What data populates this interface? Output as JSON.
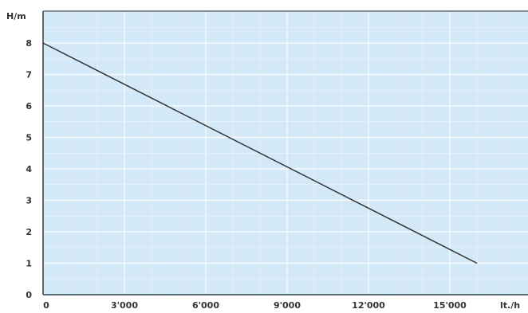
{
  "chart_data": {
    "type": "line",
    "title": "",
    "xlabel": "lt./h",
    "ylabel": "H/m",
    "xlim": [
      0,
      18000
    ],
    "ylim": [
      0,
      9
    ],
    "x_ticks": [
      0,
      3000,
      6000,
      9000,
      12000,
      15000
    ],
    "x_tick_labels": [
      "0",
      "3'000",
      "6'000",
      "9'000",
      "12'000",
      "15'000"
    ],
    "y_ticks": [
      0,
      1,
      2,
      3,
      4,
      5,
      6,
      7,
      8
    ],
    "y_tick_labels": [
      "0",
      "1",
      "2",
      "3",
      "4",
      "5",
      "6",
      "7",
      "8"
    ],
    "grid": true,
    "legend": "none",
    "series": [
      {
        "x": [
          0,
          16000
        ],
        "y": [
          8,
          1
        ],
        "color": "#333333"
      }
    ],
    "colors": {
      "plot_background": "#d4e9f7",
      "grid": "#ffffff",
      "frame": "#5a6b78"
    }
  }
}
